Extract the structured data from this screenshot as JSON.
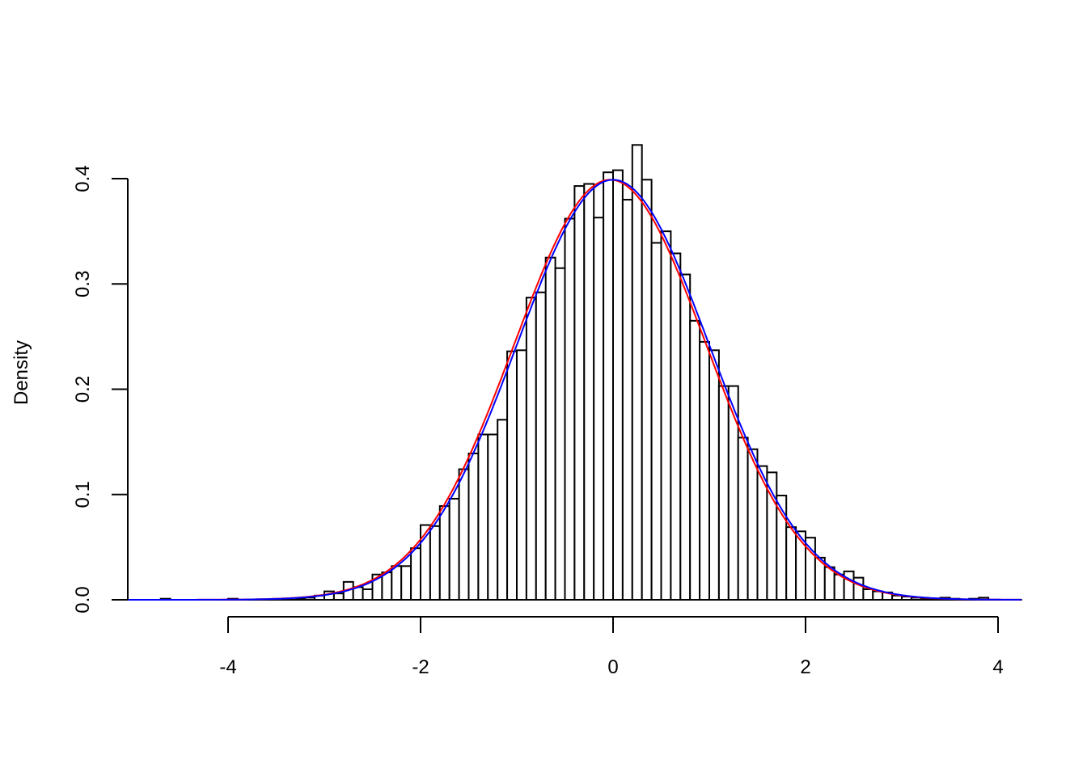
{
  "chart_data": {
    "type": "bar",
    "subtype": "histogram with density curves",
    "title": "",
    "xlabel": "",
    "ylabel": "Density",
    "xlim": [
      -5.1,
      4.25
    ],
    "ylim": [
      0,
      0.44
    ],
    "x_ticks": [
      -4,
      -2,
      0,
      2,
      4
    ],
    "x_tick_labels": [
      "-4",
      "-2",
      "0",
      "2",
      "4"
    ],
    "y_ticks": [
      0,
      0.1,
      0.2,
      0.3,
      0.4
    ],
    "y_tick_labels": [
      "0.0",
      "0.1",
      "0.2",
      "0.3",
      "0.4"
    ],
    "grid": false,
    "bin_width": 0.1,
    "bins": [
      [
        -4.7,
        0.001
      ],
      [
        -4.0,
        0.001
      ],
      [
        -3.3,
        0.001
      ],
      [
        -3.2,
        0.002
      ],
      [
        -3.1,
        0.004
      ],
      [
        -3.0,
        0.008
      ],
      [
        -2.9,
        0.006
      ],
      [
        -2.8,
        0.017
      ],
      [
        -2.7,
        0.012
      ],
      [
        -2.6,
        0.01
      ],
      [
        -2.5,
        0.024
      ],
      [
        -2.4,
        0.026
      ],
      [
        -2.3,
        0.032
      ],
      [
        -2.2,
        0.032
      ],
      [
        -2.1,
        0.049
      ],
      [
        -2.0,
        0.071
      ],
      [
        -1.9,
        0.07
      ],
      [
        -1.8,
        0.089
      ],
      [
        -1.7,
        0.096
      ],
      [
        -1.6,
        0.124
      ],
      [
        -1.5,
        0.139
      ],
      [
        -1.4,
        0.157
      ],
      [
        -1.3,
        0.157
      ],
      [
        -1.2,
        0.171
      ],
      [
        -1.1,
        0.236
      ],
      [
        -1.0,
        0.237
      ],
      [
        -0.9,
        0.287
      ],
      [
        -0.8,
        0.292
      ],
      [
        -0.7,
        0.325
      ],
      [
        -0.6,
        0.315
      ],
      [
        -0.5,
        0.362
      ],
      [
        -0.4,
        0.393
      ],
      [
        -0.3,
        0.395
      ],
      [
        -0.2,
        0.363
      ],
      [
        -0.1,
        0.406
      ],
      [
        0.0,
        0.408
      ],
      [
        0.1,
        0.38
      ],
      [
        0.2,
        0.432
      ],
      [
        0.3,
        0.399
      ],
      [
        0.4,
        0.339
      ],
      [
        0.5,
        0.35
      ],
      [
        0.6,
        0.329
      ],
      [
        0.7,
        0.309
      ],
      [
        0.8,
        0.265
      ],
      [
        0.9,
        0.245
      ],
      [
        1.0,
        0.237
      ],
      [
        1.1,
        0.203
      ],
      [
        1.2,
        0.203
      ],
      [
        1.3,
        0.154
      ],
      [
        1.4,
        0.143
      ],
      [
        1.5,
        0.127
      ],
      [
        1.6,
        0.121
      ],
      [
        1.7,
        0.099
      ],
      [
        1.8,
        0.069
      ],
      [
        1.9,
        0.065
      ],
      [
        2.0,
        0.059
      ],
      [
        2.1,
        0.04
      ],
      [
        2.2,
        0.031
      ],
      [
        2.3,
        0.024
      ],
      [
        2.4,
        0.027
      ],
      [
        2.5,
        0.021
      ],
      [
        2.6,
        0.01
      ],
      [
        2.7,
        0.008
      ],
      [
        2.8,
        0.007
      ],
      [
        2.9,
        0.004
      ],
      [
        3.0,
        0.003
      ],
      [
        3.1,
        0.002
      ],
      [
        3.2,
        0.001
      ],
      [
        3.3,
        0.001
      ],
      [
        3.4,
        0.002
      ],
      [
        3.5,
        0.001
      ],
      [
        3.7,
        0.001
      ],
      [
        3.8,
        0.002
      ]
    ],
    "curves": [
      {
        "distribution": "normal",
        "mean": -0.03,
        "sd": 1.0,
        "color": "#ff0000"
      },
      {
        "distribution": "normal",
        "mean": 0.0,
        "sd": 1.0,
        "color": "#0000ff"
      }
    ],
    "bar_fill": "#ffffff",
    "bar_stroke": "#000000"
  }
}
